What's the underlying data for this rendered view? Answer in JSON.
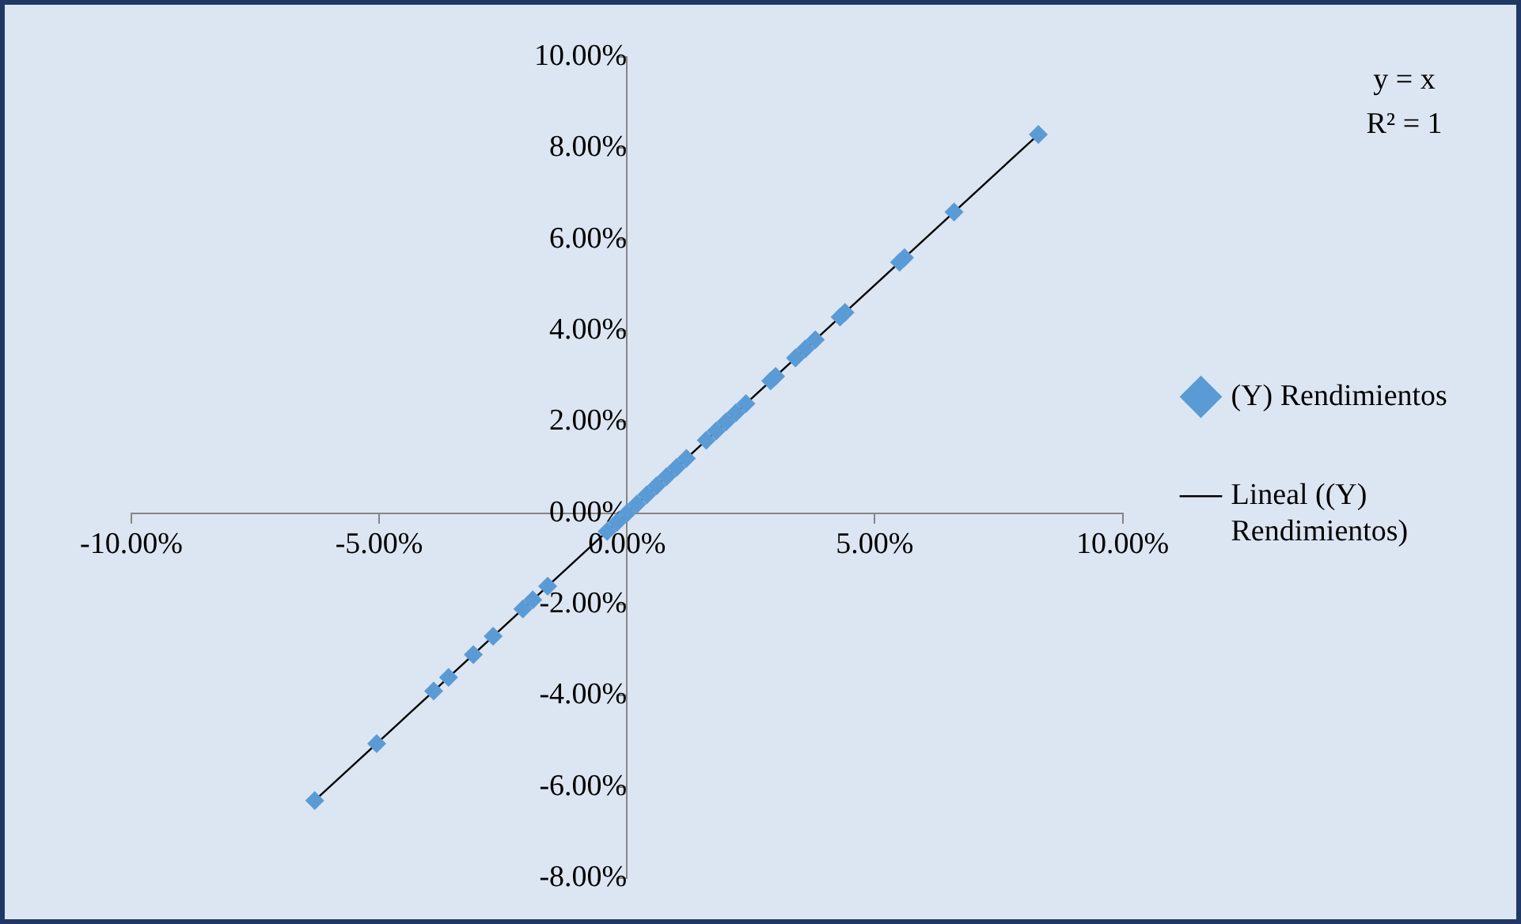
{
  "chart_data": {
    "type": "scatter",
    "legend": "right",
    "xlim": [
      -10,
      10
    ],
    "ylim": [
      -8,
      10
    ],
    "xticks": [
      {
        "value": -10,
        "label": "-10.00%"
      },
      {
        "value": -5,
        "label": "-5.00%"
      },
      {
        "value": 0,
        "label": "0.00%"
      },
      {
        "value": 5,
        "label": "5.00%"
      },
      {
        "value": 10,
        "label": "10.00%"
      }
    ],
    "yticks": [
      {
        "value": -8,
        "label": "-8.00%"
      },
      {
        "value": -6,
        "label": "-6.00%"
      },
      {
        "value": -4,
        "label": "-4.00%"
      },
      {
        "value": -2,
        "label": "-2.00%"
      },
      {
        "value": 0,
        "label": "0.00%"
      },
      {
        "value": 2,
        "label": "2.00%"
      },
      {
        "value": 4,
        "label": "4.00%"
      },
      {
        "value": 6,
        "label": "6.00%"
      },
      {
        "value": 8,
        "label": "8.00%"
      },
      {
        "value": 10,
        "label": "10.00%"
      }
    ],
    "annotations": [
      "y = x",
      "R² = 1"
    ],
    "series": [
      {
        "name": "(Y) Rendimientos",
        "color": "#5b9bd5",
        "marker": "diamond",
        "x": [
          -6.3,
          -5.05,
          -3.9,
          -3.6,
          -3.1,
          -2.7,
          -2.1,
          -1.9,
          -1.6,
          -0.4,
          -0.2,
          0,
          0.2,
          0.4,
          0.6,
          0.8,
          1.0,
          1.2,
          1.6,
          1.8,
          2.0,
          2.2,
          2.4,
          2.9,
          3.0,
          3.4,
          3.6,
          3.8,
          4.3,
          4.4,
          5.5,
          5.6,
          6.6,
          8.3
        ],
        "values": [
          -6.3,
          -5.05,
          -3.9,
          -3.6,
          -3.1,
          -2.7,
          -2.1,
          -1.9,
          -1.6,
          -0.4,
          -0.2,
          0,
          0.2,
          0.4,
          0.6,
          0.8,
          1.0,
          1.2,
          1.6,
          1.8,
          2.0,
          2.2,
          2.4,
          2.9,
          3.0,
          3.4,
          3.6,
          3.8,
          4.3,
          4.4,
          5.5,
          5.6,
          6.6,
          8.3
        ]
      },
      {
        "name": "Lineal ((Y) Rendimientos)",
        "type": "line",
        "marker": "none",
        "color": "#000000",
        "x": [
          -6.3,
          8.3
        ],
        "values": [
          -6.3,
          8.3
        ]
      }
    ]
  }
}
